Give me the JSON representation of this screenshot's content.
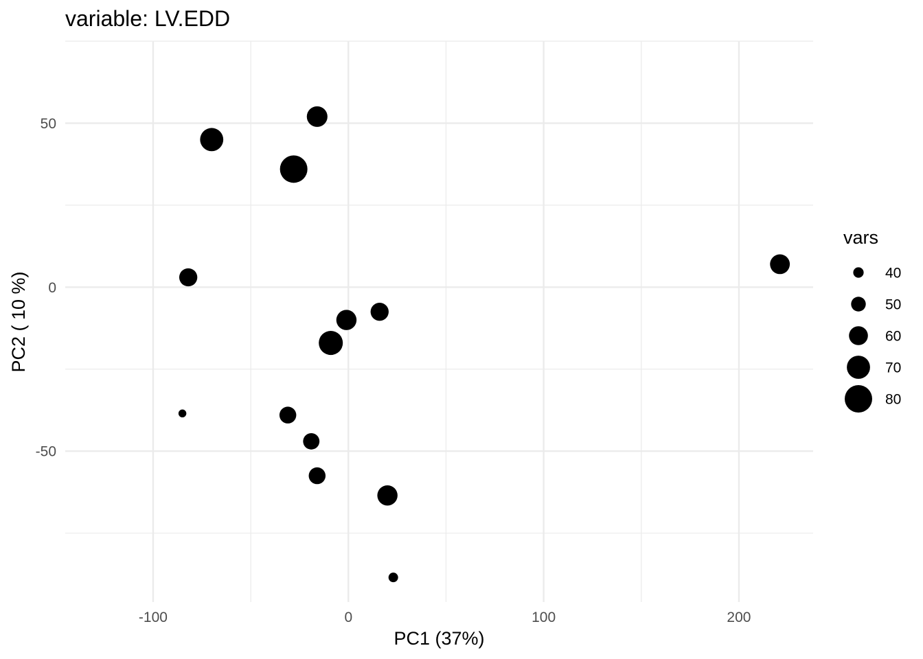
{
  "chart_data": {
    "type": "scatter",
    "title": "variable: LV.EDD",
    "xlabel": "PC1 (37%)",
    "ylabel": "PC2 ( 10 %)",
    "xlim": [
      -145,
      238
    ],
    "ylim": [
      -96,
      75
    ],
    "x_ticks": [
      -100,
      0,
      100,
      200
    ],
    "x_tick_labels": [
      "-100",
      "0",
      "100",
      "200"
    ],
    "y_ticks": [
      50,
      0,
      -50
    ],
    "y_tick_labels": [
      "50",
      "0",
      "-50"
    ],
    "grid": true,
    "legend_placement": "right",
    "legend": {
      "title": "vars",
      "entries": [
        {
          "value": 40,
          "label": "40"
        },
        {
          "value": 50,
          "label": "50"
        },
        {
          "value": 60,
          "label": "60"
        },
        {
          "value": 70,
          "label": "70"
        },
        {
          "value": 80,
          "label": "80"
        }
      ]
    },
    "size_variable": "vars",
    "points": [
      {
        "x": -16,
        "y": 52,
        "size": 64
      },
      {
        "x": -70,
        "y": 45,
        "size": 70
      },
      {
        "x": -28,
        "y": 36,
        "size": 80
      },
      {
        "x": 221,
        "y": 7,
        "size": 62
      },
      {
        "x": -82,
        "y": 3,
        "size": 58
      },
      {
        "x": 16,
        "y": -7.5,
        "size": 58
      },
      {
        "x": -1,
        "y": -10,
        "size": 63
      },
      {
        "x": -9,
        "y": -17,
        "size": 72
      },
      {
        "x": -85,
        "y": -38.5,
        "size": 34
      },
      {
        "x": -31,
        "y": -39,
        "size": 55
      },
      {
        "x": -19,
        "y": -47,
        "size": 54
      },
      {
        "x": -16,
        "y": -57.5,
        "size": 55
      },
      {
        "x": 20,
        "y": -63.5,
        "size": 63
      },
      {
        "x": 23,
        "y": -88.5,
        "size": 38
      }
    ],
    "point_color": "#000000"
  }
}
